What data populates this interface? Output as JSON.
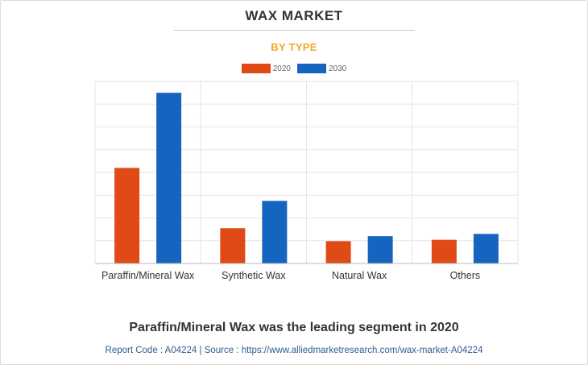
{
  "header": {
    "title": "WAX MARKET",
    "subtitle": "BY TYPE"
  },
  "colors": {
    "series_2020": "#e04a16",
    "series_2030": "#1565c0",
    "subtitle": "#f5a623",
    "grid": "#e6e6e6"
  },
  "chart_data": {
    "type": "bar",
    "categories": [
      "Paraffin/Mineral Wax",
      "Synthetic Wax",
      "Natural Wax",
      "Others"
    ],
    "series": [
      {
        "name": "2020",
        "values": [
          4.2,
          1.55,
          0.98,
          1.04
        ]
      },
      {
        "name": "2030",
        "values": [
          7.5,
          2.75,
          1.2,
          1.3
        ]
      }
    ],
    "ylim": [
      0,
      8
    ],
    "grid": true,
    "legend": "top-center"
  },
  "footer": {
    "caption": "Paraffin/Mineral Wax was the leading segment in 2020",
    "source": "Report Code : A04224  |  Source : https://www.alliedmarketresearch.com/wax-market-A04224"
  }
}
